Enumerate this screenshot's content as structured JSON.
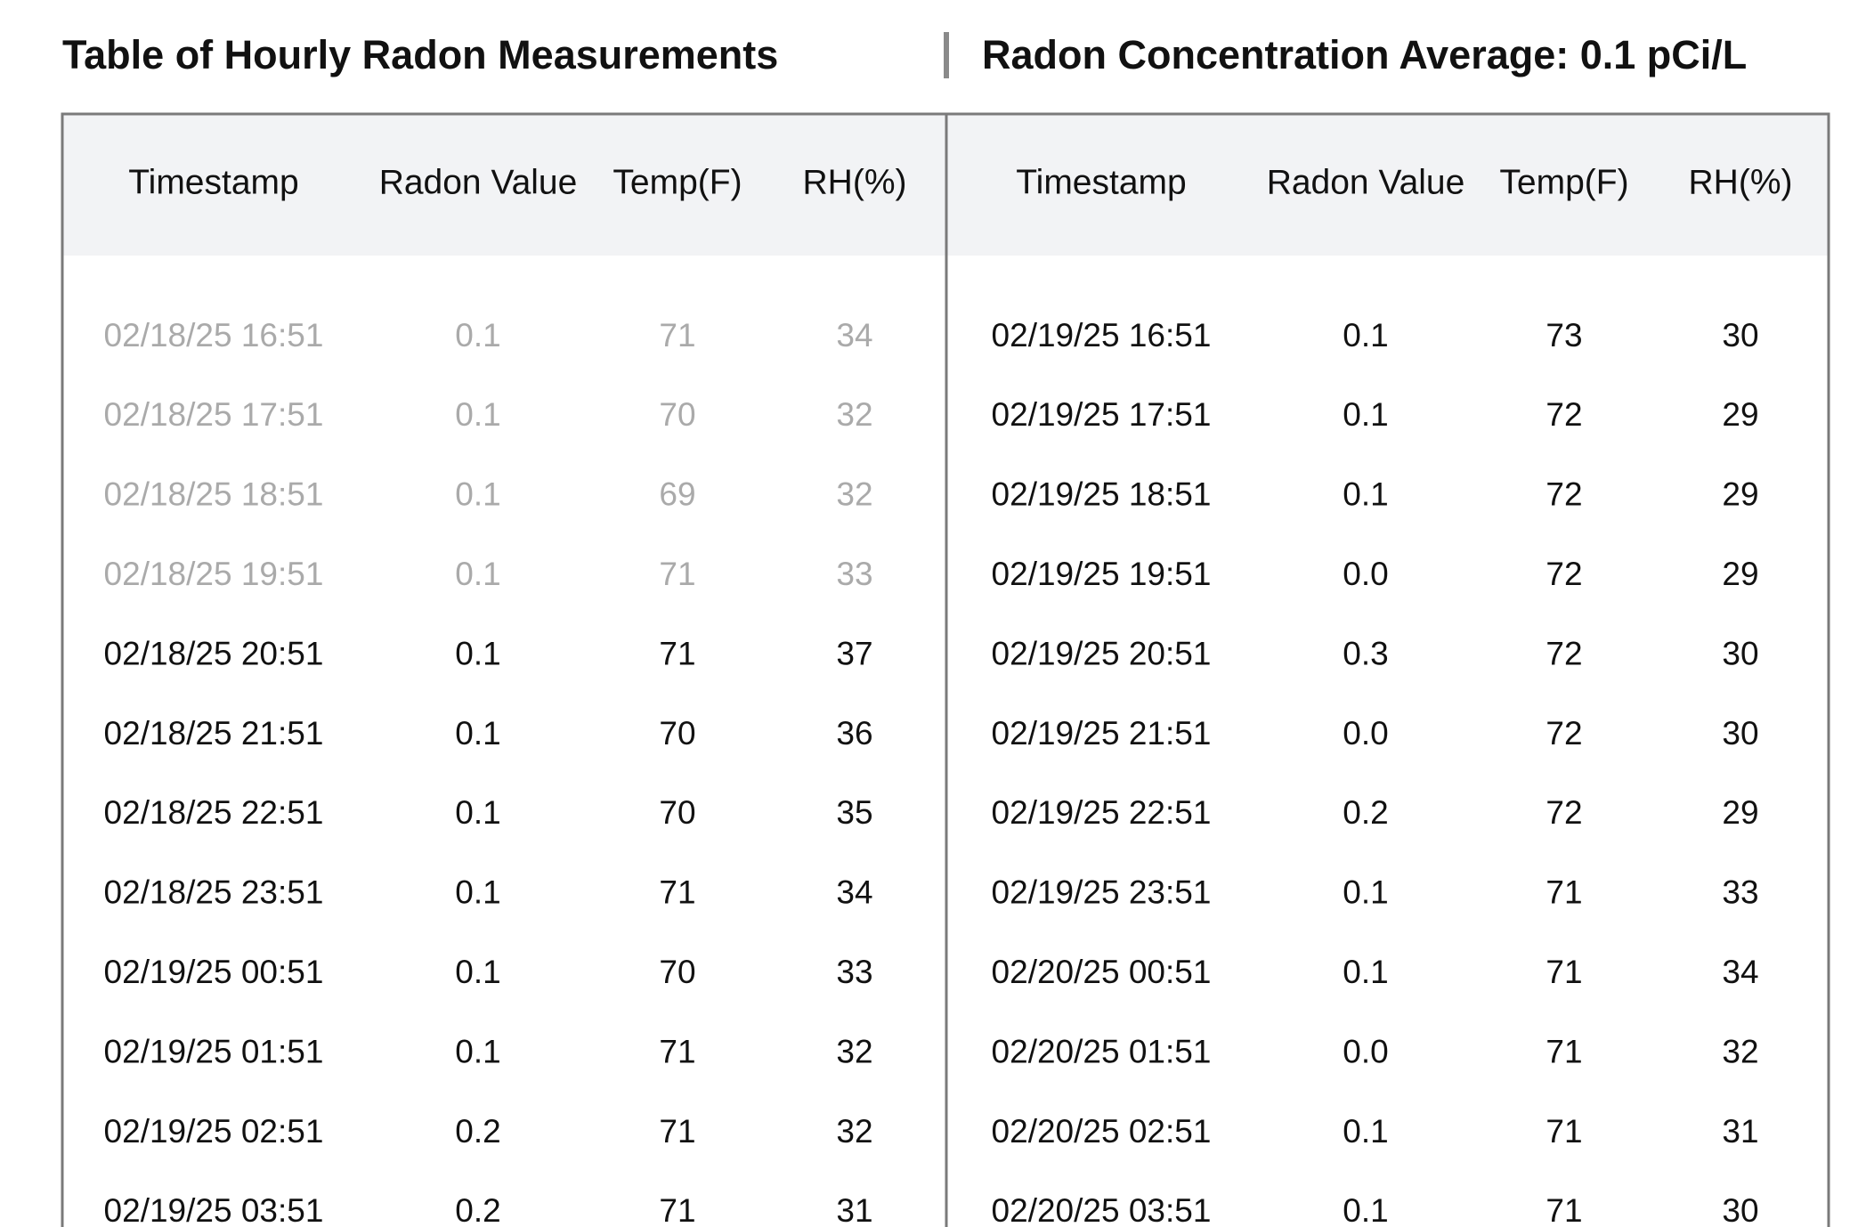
{
  "header": {
    "title": "Table of Hourly Radon Measurements",
    "average": "Radon Concentration Average: 0.1 pCi/L"
  },
  "tables": [
    {
      "columns": [
        "Timestamp",
        "Radon Value",
        "Temp(F)",
        "RH(%)"
      ],
      "rows": [
        {
          "cells": [
            "02/18/25 16:51",
            "0.1",
            "71",
            "34"
          ],
          "muted": true
        },
        {
          "cells": [
            "02/18/25 17:51",
            "0.1",
            "70",
            "32"
          ],
          "muted": true
        },
        {
          "cells": [
            "02/18/25 18:51",
            "0.1",
            "69",
            "32"
          ],
          "muted": true
        },
        {
          "cells": [
            "02/18/25 19:51",
            "0.1",
            "71",
            "33"
          ],
          "muted": true
        },
        {
          "cells": [
            "02/18/25 20:51",
            "0.1",
            "71",
            "37"
          ],
          "muted": false
        },
        {
          "cells": [
            "02/18/25 21:51",
            "0.1",
            "70",
            "36"
          ],
          "muted": false
        },
        {
          "cells": [
            "02/18/25 22:51",
            "0.1",
            "70",
            "35"
          ],
          "muted": false
        },
        {
          "cells": [
            "02/18/25 23:51",
            "0.1",
            "71",
            "34"
          ],
          "muted": false
        },
        {
          "cells": [
            "02/19/25 00:51",
            "0.1",
            "70",
            "33"
          ],
          "muted": false
        },
        {
          "cells": [
            "02/19/25 01:51",
            "0.1",
            "71",
            "32"
          ],
          "muted": false
        },
        {
          "cells": [
            "02/19/25 02:51",
            "0.2",
            "71",
            "32"
          ],
          "muted": false
        },
        {
          "cells": [
            "02/19/25 03:51",
            "0.2",
            "71",
            "31"
          ],
          "muted": false
        }
      ]
    },
    {
      "columns": [
        "Timestamp",
        "Radon Value",
        "Temp(F)",
        "RH(%)"
      ],
      "rows": [
        {
          "cells": [
            "02/19/25 16:51",
            "0.1",
            "73",
            "30"
          ],
          "muted": false
        },
        {
          "cells": [
            "02/19/25 17:51",
            "0.1",
            "72",
            "29"
          ],
          "muted": false
        },
        {
          "cells": [
            "02/19/25 18:51",
            "0.1",
            "72",
            "29"
          ],
          "muted": false
        },
        {
          "cells": [
            "02/19/25 19:51",
            "0.0",
            "72",
            "29"
          ],
          "muted": false
        },
        {
          "cells": [
            "02/19/25 20:51",
            "0.3",
            "72",
            "30"
          ],
          "muted": false
        },
        {
          "cells": [
            "02/19/25 21:51",
            "0.0",
            "72",
            "30"
          ],
          "muted": false
        },
        {
          "cells": [
            "02/19/25 22:51",
            "0.2",
            "72",
            "29"
          ],
          "muted": false
        },
        {
          "cells": [
            "02/19/25 23:51",
            "0.1",
            "71",
            "33"
          ],
          "muted": false
        },
        {
          "cells": [
            "02/20/25 00:51",
            "0.1",
            "71",
            "34"
          ],
          "muted": false
        },
        {
          "cells": [
            "02/20/25 01:51",
            "0.0",
            "71",
            "32"
          ],
          "muted": false
        },
        {
          "cells": [
            "02/20/25 02:51",
            "0.1",
            "71",
            "31"
          ],
          "muted": false
        },
        {
          "cells": [
            "02/20/25 03:51",
            "0.1",
            "71",
            "30"
          ],
          "muted": false
        }
      ]
    }
  ]
}
